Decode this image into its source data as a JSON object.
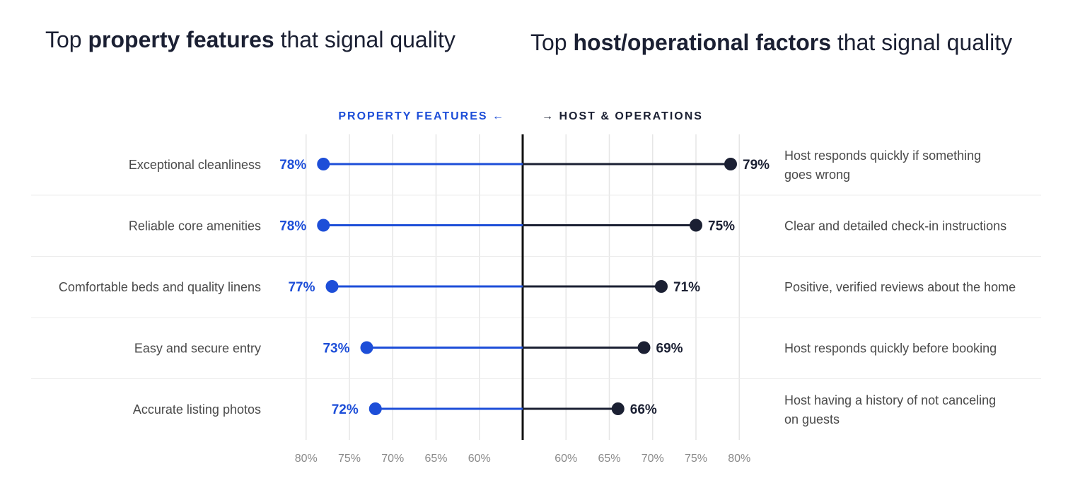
{
  "titles": {
    "left_prefix": "Top ",
    "left_bold": "property features",
    "left_suffix": " that signal quality",
    "right_prefix": "Top ",
    "right_bold": "host/operational factors",
    "right_suffix": " that signal quality"
  },
  "colors": {
    "property": "#1d4ed8",
    "host": "#1b2033",
    "grid": "#e6e6e6",
    "divider": "#ececec"
  },
  "chart_data": {
    "type": "diverging-dot",
    "legend": {
      "left": "PROPERTY FEATURES ←",
      "right": "→ HOST & OPERATIONS"
    },
    "axis_ticks_left": [
      "80%",
      "75%",
      "70%",
      "65%",
      "60%"
    ],
    "axis_ticks_right": [
      "60%",
      "65%",
      "70%",
      "75%",
      "80%"
    ],
    "axis_tick_values_left": [
      80,
      75,
      70,
      65,
      60
    ],
    "axis_tick_values_right": [
      60,
      65,
      70,
      75,
      80
    ],
    "baseline": 55,
    "max": 80,
    "series": [
      {
        "name": "PROPERTY FEATURES",
        "side": "left",
        "labels": [
          "Exceptional cleanliness",
          "Reliable core amenities",
          "Comfortable beds and quality linens",
          "Easy and secure entry",
          "Accurate listing photos"
        ],
        "values": [
          78,
          78,
          77,
          73,
          72
        ],
        "value_labels": [
          "78%",
          "78%",
          "77%",
          "73%",
          "72%"
        ]
      },
      {
        "name": "HOST & OPERATIONS",
        "side": "right",
        "labels": [
          [
            "Host responds quickly if something",
            "goes wrong"
          ],
          [
            "Clear and detailed check-in instructions"
          ],
          [
            "Positive, verified reviews about the home"
          ],
          [
            "Host responds quickly before booking"
          ],
          [
            "Host having a history of not canceling",
            "on guests"
          ]
        ],
        "values": [
          79,
          75,
          71,
          69,
          66
        ],
        "value_labels": [
          "79%",
          "75%",
          "71%",
          "69%",
          "66%"
        ]
      }
    ]
  }
}
